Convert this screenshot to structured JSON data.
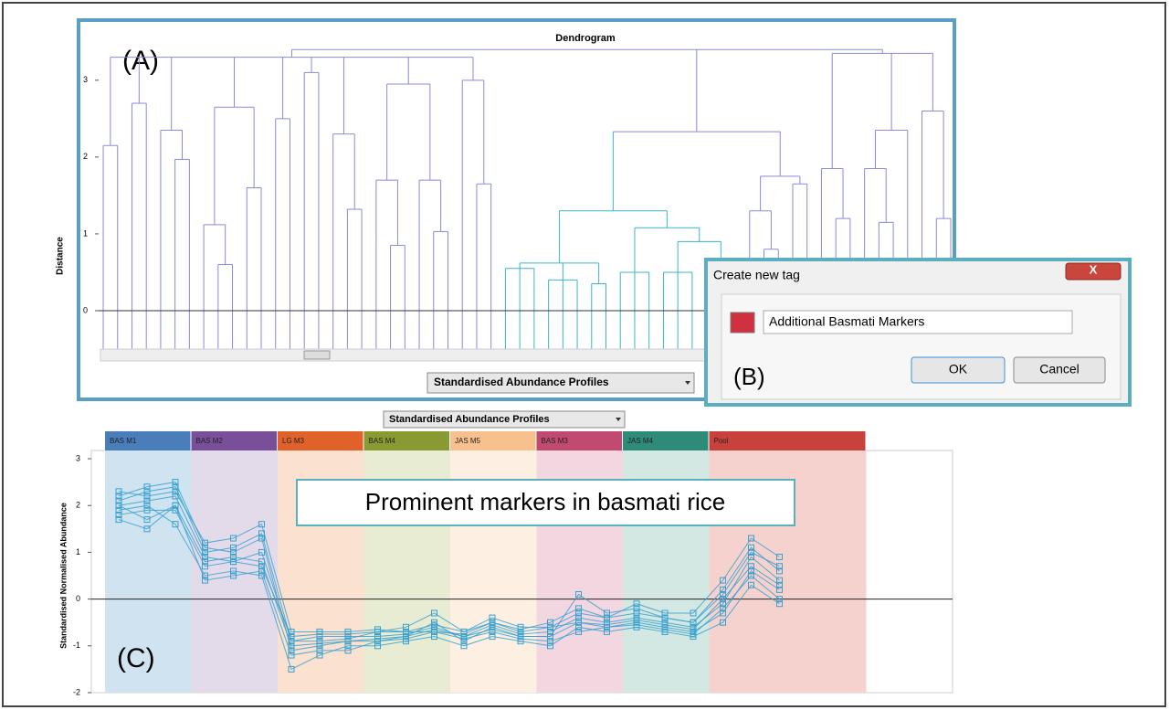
{
  "chart_data": [
    {
      "type": "dendrogram",
      "title": "Dendrogram",
      "panel_label": "(A)",
      "y_label": "Distance",
      "ylim": [
        -0.5,
        3.45
      ],
      "yticks": [
        0,
        1,
        2,
        3
      ],
      "color": "#8a8ad8",
      "dropdown": "Standardised Abundance Profiles",
      "tree": {
        "height": 3.4,
        "children": [
          {
            "height": 3.3,
            "children": [
              {
                "height": 2.15,
                "children": [
                  {},
                  {}
                ]
              },
              {
                "height": 2.7,
                "children": [
                  {},
                  {}
                ]
              },
              {
                "height": 2.35,
                "children": [
                  {},
                  {
                    "height": 1.97,
                    "children": [
                      {},
                      {}
                    ]
                  }
                ]
              },
              {
                "height": 2.65,
                "children": [
                  {
                    "height": 1.12,
                    "children": [
                      {},
                      {
                        "height": 0.6,
                        "children": [
                          {},
                          {}
                        ]
                      }
                    ]
                  },
                  {
                    "height": 1.6,
                    "children": [
                      {},
                      {}
                    ]
                  }
                ]
              },
              {
                "height": 2.5,
                "children": [
                  {},
                  {}
                ]
              },
              {
                "height": 3.1,
                "children": [
                  {},
                  {}
                ]
              },
              {
                "height": 2.3,
                "children": [
                  {},
                  {
                    "height": 1.32,
                    "children": [
                      {},
                      {}
                    ]
                  }
                ]
              },
              {
                "height": 2.95,
                "children": [
                  {
                    "height": 1.7,
                    "children": [
                      {},
                      {
                        "height": 0.85,
                        "children": [
                          {},
                          {}
                        ]
                      }
                    ]
                  },
                  {
                    "height": 1.7,
                    "children": [
                      {},
                      {
                        "height": 1.03,
                        "children": [
                          {},
                          {}
                        ]
                      }
                    ]
                  }
                ]
              },
              {
                "height": 3.0,
                "children": [
                  {},
                  {
                    "height": 1.65,
                    "children": [
                      {},
                      {}
                    ]
                  }
                ]
              }
            ]
          },
          {
            "height": 2.33,
            "children": [
              {
                "height": 1.3,
                "color": "#3cb4cc",
                "children": [
                  {
                    "height": 0.62,
                    "children": [
                      {
                        "height": 0.55,
                        "children": [
                          {},
                          {},
                          {}
                        ]
                      },
                      {
                        "height": 0.4,
                        "children": [
                          {},
                          {},
                          {}
                        ]
                      },
                      {
                        "height": 0.35,
                        "children": [
                          {},
                          {}
                        ]
                      }
                    ]
                  },
                  {
                    "height": 1.08,
                    "children": [
                      {
                        "height": 0.5,
                        "children": [
                          {},
                          {},
                          {}
                        ]
                      },
                      {
                        "height": 0.9,
                        "children": [
                          {
                            "height": 0.5,
                            "children": [
                              {},
                              {},
                              {}
                            ]
                          },
                          {
                            "height": 0.6,
                            "children": [
                              {},
                              {},
                              {}
                            ]
                          }
                        ]
                      }
                    ]
                  }
                ]
              },
              {
                "height": 1.75,
                "children": [
                  {
                    "height": 1.3,
                    "children": [
                      {},
                      {
                        "height": 0.8,
                        "children": [
                          {},
                          {}
                        ]
                      }
                    ]
                  },
                  {
                    "height": 1.65,
                    "children": [
                      {},
                      {}
                    ]
                  }
                ]
              }
            ]
          },
          {
            "height": 3.35,
            "children": [
              {
                "height": 1.85,
                "children": [
                  {},
                  {
                    "height": 1.2,
                    "children": [
                      {},
                      {}
                    ]
                  }
                ]
              },
              {
                "height": 2.35,
                "children": [
                  {
                    "height": 1.85,
                    "children": [
                      {},
                      {
                        "height": 1.15,
                        "children": [
                          {},
                          {}
                        ]
                      }
                    ]
                  },
                  {}
                ]
              },
              {
                "height": 2.6,
                "children": [
                  {},
                  {
                    "height": 1.2,
                    "children": [
                      {},
                      {}
                    ]
                  }
                ]
              }
            ]
          }
        ]
      }
    },
    {
      "type": "profile",
      "panel_label": "(C)",
      "dropdown": "Standardised Abundance Profiles",
      "y_label": "Standardised Normalised Abundance",
      "annotation": "Prominent markers in basmati rice",
      "ylim": [
        -2,
        3
      ],
      "yticks": [
        -2,
        -1,
        0,
        1,
        2,
        3
      ],
      "color": "#3aa0d0",
      "groups": [
        {
          "name": "BAS M1",
          "color": "#4a7ebb",
          "background": "#cfe3f0"
        },
        {
          "name": "BAS M2",
          "color": "#7a4f9a",
          "background": "#e4dbea"
        },
        {
          "name": "LG M3",
          "color": "#e0622a",
          "background": "#fbe1cf"
        },
        {
          "name": "BAS M4",
          "color": "#8a9a32",
          "background": "#e8ecd2"
        },
        {
          "name": "JAS M5",
          "color": "#f7c08c",
          "background": "#fdf0e3"
        },
        {
          "name": "BAS M3",
          "color": "#c04a70",
          "background": "#f2d7e1"
        },
        {
          "name": "JAS M4",
          "color": "#2e8b78",
          "background": "#d3e8e2"
        },
        {
          "name": "Pool",
          "color": "#c8413a",
          "background": "#f5d2ce"
        }
      ],
      "series": [
        {
          "values": [
            [
              2.0,
              2.1,
              2.2
            ],
            [
              0.9,
              0.8,
              1.0
            ],
            [
              -0.9,
              -0.8,
              -0.8
            ],
            [
              -0.8,
              -0.75,
              -0.6
            ],
            [
              -0.8,
              -0.55,
              -0.75
            ],
            [
              -0.7,
              -0.4,
              -0.5
            ],
            [
              -0.4,
              -0.5,
              -0.6
            ],
            [
              -0.1,
              0.9,
              0.4
            ]
          ]
        },
        {
          "values": [
            [
              2.2,
              2.4,
              2.5
            ],
            [
              1.1,
              1.0,
              1.3
            ],
            [
              -1.1,
              -1.0,
              -0.9
            ],
            [
              -0.9,
              -0.8,
              -0.5
            ],
            [
              -0.9,
              -0.6,
              -0.8
            ],
            [
              -0.8,
              0.1,
              -0.3
            ],
            [
              -0.2,
              -0.4,
              -0.5
            ],
            [
              0.2,
              1.1,
              0.6
            ]
          ]
        },
        {
          "values": [
            [
              1.8,
              1.9,
              1.9
            ],
            [
              0.7,
              0.8,
              0.7
            ],
            [
              -0.8,
              -0.75,
              -0.75
            ],
            [
              -0.7,
              -0.7,
              -0.7
            ],
            [
              -0.75,
              -0.5,
              -0.7
            ],
            [
              -0.6,
              -0.5,
              -0.6
            ],
            [
              -0.5,
              -0.6,
              -0.7
            ],
            [
              -0.3,
              0.6,
              0.2
            ]
          ]
        },
        {
          "values": [
            [
              1.9,
              2.0,
              1.6
            ],
            [
              0.5,
              0.6,
              0.5
            ],
            [
              -1.5,
              -1.2,
              -1.0
            ],
            [
              -1.0,
              -0.9,
              -0.8
            ],
            [
              -1.0,
              -0.8,
              -0.9
            ],
            [
              -1.0,
              -0.6,
              -0.7
            ],
            [
              -0.6,
              -0.7,
              -0.8
            ],
            [
              -0.5,
              0.3,
              -0.1
            ]
          ]
        },
        {
          "values": [
            [
              2.1,
              2.3,
              2.4
            ],
            [
              1.0,
              1.1,
              1.4
            ],
            [
              -0.9,
              -0.9,
              -0.85
            ],
            [
              -0.7,
              -0.6,
              -0.3
            ],
            [
              -0.7,
              -0.4,
              -0.6
            ],
            [
              -0.6,
              -0.3,
              -0.4
            ],
            [
              -0.1,
              -0.3,
              -0.3
            ],
            [
              0.4,
              1.3,
              0.9
            ]
          ]
        },
        {
          "values": [
            [
              1.7,
              1.5,
              2.0
            ],
            [
              0.4,
              0.5,
              0.6
            ],
            [
              -1.2,
              -1.1,
              -1.1
            ],
            [
              -0.9,
              -0.85,
              -0.7
            ],
            [
              -0.85,
              -0.7,
              -0.85
            ],
            [
              -0.9,
              -0.7,
              -0.6
            ],
            [
              -0.55,
              -0.65,
              -0.75
            ],
            [
              -0.2,
              0.5,
              0.0
            ]
          ]
        },
        {
          "values": [
            [
              2.3,
              2.2,
              2.3
            ],
            [
              1.2,
              1.3,
              1.6
            ],
            [
              -0.7,
              -0.7,
              -0.7
            ],
            [
              -0.65,
              -0.7,
              -0.55
            ],
            [
              -0.7,
              -0.5,
              -0.65
            ],
            [
              -0.5,
              -0.2,
              -0.4
            ],
            [
              -0.3,
              -0.4,
              -0.5
            ],
            [
              0.1,
              1.0,
              0.7
            ]
          ]
        },
        {
          "values": [
            [
              2.0,
              1.7,
              2.0
            ],
            [
              0.8,
              0.9,
              0.8
            ],
            [
              -1.0,
              -0.95,
              -0.9
            ],
            [
              -0.85,
              -0.8,
              -0.65
            ],
            [
              -0.8,
              -0.65,
              -0.8
            ],
            [
              -0.8,
              -0.5,
              -0.55
            ],
            [
              -0.45,
              -0.55,
              -0.65
            ],
            [
              0.0,
              0.7,
              0.3
            ]
          ]
        }
      ]
    }
  ],
  "dialog": {
    "title": "Create new tag",
    "close": "X",
    "input": "Additional Basmati Markers",
    "ok": "OK",
    "cancel": "Cancel",
    "panel_label": "(B)"
  }
}
